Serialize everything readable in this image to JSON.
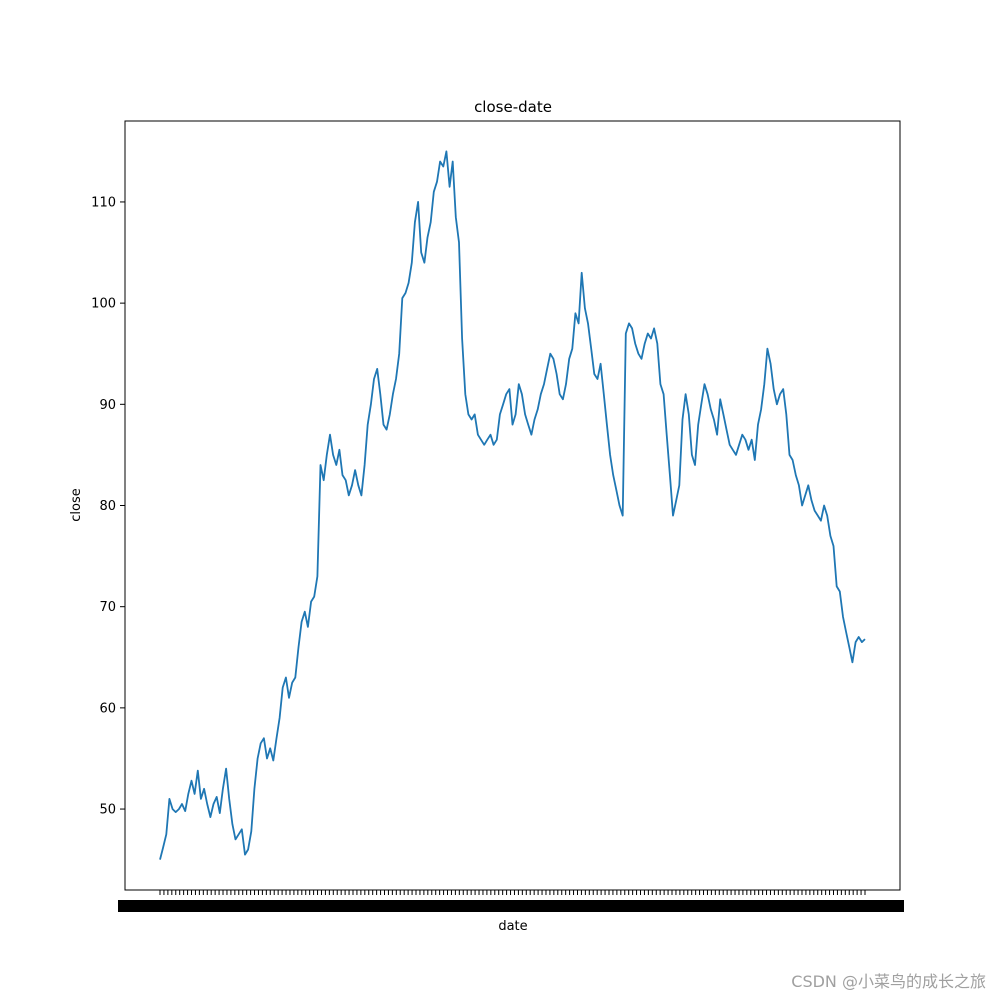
{
  "chart_data": {
    "type": "line",
    "title": "close-date",
    "xlabel": "date",
    "ylabel": "close",
    "ylim": [
      42,
      118
    ],
    "yticks": [
      50,
      60,
      70,
      80,
      90,
      100,
      110
    ],
    "grid": false,
    "series": [
      {
        "color": "#1f77b4",
        "values": [
          45.0,
          46.2,
          47.5,
          51.0,
          50.0,
          49.7,
          50.0,
          50.5,
          49.8,
          51.5,
          52.8,
          51.5,
          53.8,
          51.0,
          52.0,
          50.5,
          49.2,
          50.5,
          51.2,
          49.6,
          52.0,
          54.0,
          51.0,
          48.5,
          47.0,
          47.5,
          48.0,
          45.5,
          46.0,
          47.8,
          52.0,
          55.0,
          56.5,
          57.0,
          55.0,
          56.0,
          54.8,
          57.0,
          59.0,
          62.0,
          63.0,
          61.0,
          62.5,
          63.0,
          66.0,
          68.5,
          69.5,
          68.0,
          70.5,
          71.0,
          73.0,
          84.0,
          82.5,
          85.0,
          87.0,
          85.0,
          84.0,
          85.5,
          83.0,
          82.5,
          81.0,
          82.0,
          83.5,
          82.0,
          81.0,
          84.0,
          88.0,
          90.0,
          92.5,
          93.5,
          91.0,
          88.0,
          87.5,
          89.0,
          91.0,
          92.5,
          95.0,
          100.5,
          101.0,
          102.0,
          104.0,
          108.0,
          110.0,
          105.0,
          104.0,
          106.5,
          108.0,
          111.0,
          112.0,
          114.0,
          113.5,
          115.0,
          111.5,
          114.0,
          108.5,
          106.0,
          96.5,
          91.0,
          89.0,
          88.5,
          89.0,
          87.0,
          86.5,
          86.0,
          86.5,
          87.0,
          86.0,
          86.5,
          89.0,
          90.0,
          91.0,
          91.5,
          88.0,
          89.0,
          92.0,
          91.0,
          89.0,
          88.0,
          87.0,
          88.5,
          89.5,
          91.0,
          92.0,
          93.5,
          95.0,
          94.5,
          93.0,
          91.0,
          90.5,
          92.0,
          94.5,
          95.5,
          99.0,
          98.0,
          103.0,
          99.5,
          98.0,
          95.5,
          93.0,
          92.5,
          94.0,
          91.0,
          88.0,
          85.0,
          83.0,
          81.5,
          80.0,
          79.0,
          97.0,
          98.0,
          97.5,
          96.0,
          95.0,
          94.5,
          96.0,
          97.0,
          96.5,
          97.5,
          96.0,
          92.0,
          91.0,
          87.0,
          83.0,
          79.0,
          80.5,
          82.0,
          88.5,
          91.0,
          89.0,
          85.0,
          84.0,
          88.0,
          90.0,
          92.0,
          91.0,
          89.5,
          88.5,
          87.0,
          90.5,
          89.0,
          87.5,
          86.0,
          85.5,
          85.0,
          86.0,
          87.0,
          86.5,
          85.5,
          86.5,
          84.5,
          88.0,
          89.5,
          92.0,
          95.5,
          94.0,
          91.5,
          90.0,
          91.0,
          91.5,
          89.0,
          85.0,
          84.5,
          83.0,
          82.0,
          80.0,
          81.0,
          82.0,
          80.5,
          79.5,
          79.0,
          78.5,
          80.0,
          79.0,
          77.0,
          76.0,
          72.0,
          71.5,
          69.0,
          67.5,
          66.0,
          64.5,
          66.5,
          67.0,
          66.5,
          66.8
        ]
      }
    ]
  },
  "watermark": "CSDN @小菜鸟的成长之旅"
}
